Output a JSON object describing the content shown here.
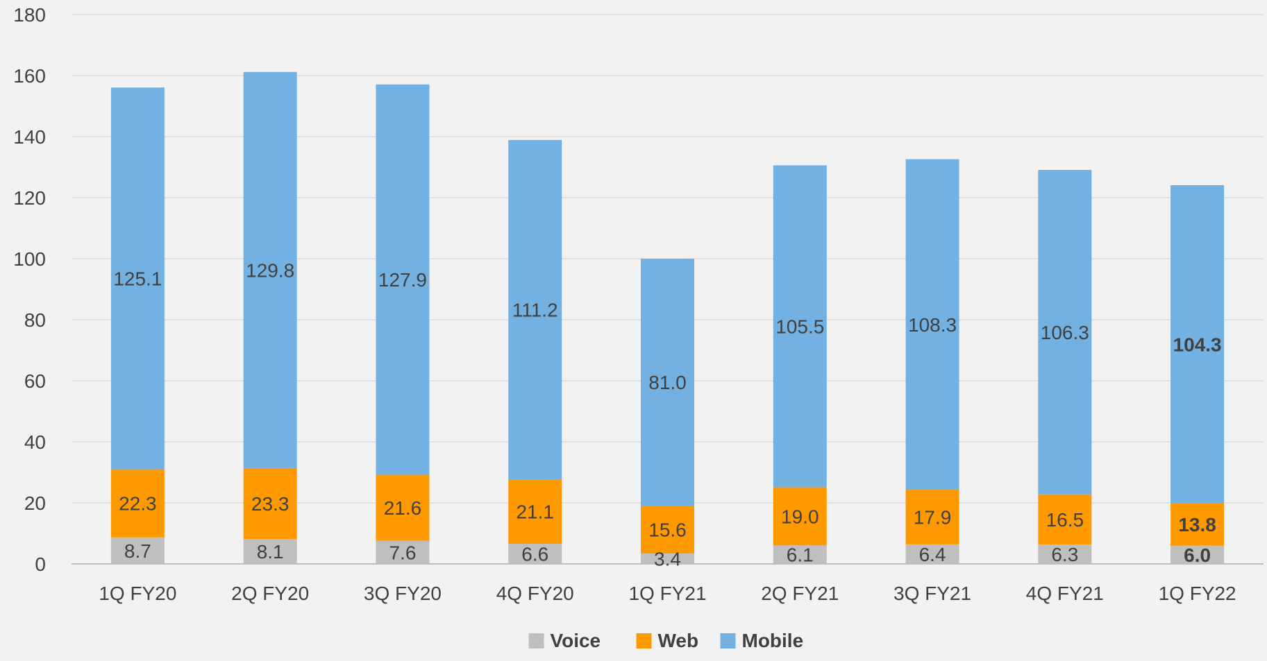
{
  "chart_data": {
    "type": "bar",
    "stacked": true,
    "title": "",
    "xlabel": "",
    "ylabel": "",
    "ylim": [
      0,
      180
    ],
    "yticks": [
      0,
      20,
      40,
      60,
      80,
      100,
      120,
      140,
      160,
      180
    ],
    "grid": true,
    "legend_position": "bottom",
    "categories": [
      "1Q FY20",
      "2Q FY20",
      "3Q FY20",
      "4Q FY20",
      "1Q FY21",
      "2Q FY21",
      "3Q FY21",
      "4Q FY21",
      "1Q FY22"
    ],
    "series": [
      {
        "name": "Voice",
        "color": "#bfbfbf",
        "values": [
          8.7,
          8.1,
          7.6,
          6.6,
          3.4,
          6.1,
          6.4,
          6.3,
          6.0
        ]
      },
      {
        "name": "Web",
        "color": "#ff9900",
        "values": [
          22.3,
          23.3,
          21.6,
          21.1,
          15.6,
          19.0,
          17.9,
          16.5,
          13.8
        ]
      },
      {
        "name": "Mobile",
        "color": "#74b1e3",
        "values": [
          125.1,
          129.8,
          127.9,
          111.2,
          81.0,
          105.5,
          108.3,
          106.3,
          104.3
        ]
      }
    ],
    "bold_category": "1Q FY22"
  }
}
